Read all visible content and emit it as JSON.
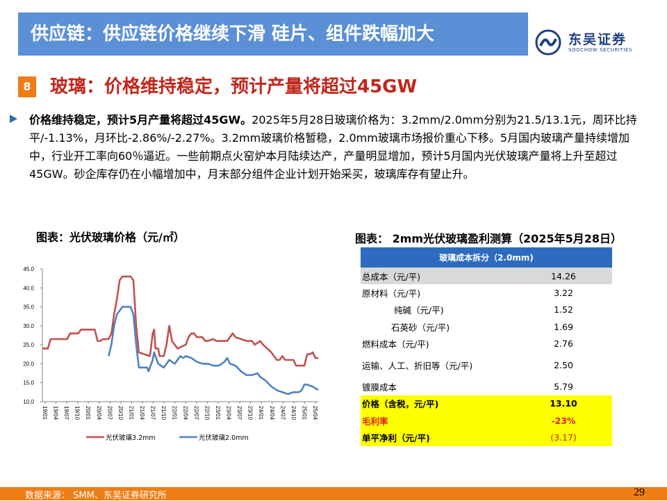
{
  "header": {
    "title": "供应链：供应链价格继续下滑 硅片、组件跌幅加大"
  },
  "logo": {
    "cn": "东吴证券",
    "en": "SOOCHOW SECURITIES",
    "mark_color": "#1f3f82"
  },
  "section": {
    "number": "8",
    "title": "玻璃：价格维持稳定，预计产量将超过45GW"
  },
  "paragraph": {
    "bold": "价格维持稳定，预计5月产量将超过45GW。",
    "text": "2025年5月28日玻璃价格为：3.2mm/2.0mm分别为21.5/13.1元，周环比持平/-1.13%，月环比-2.86%/-2.27%。3.2mm玻璃价格暂稳，2.0mm玻璃市场报价重心下移。5月国内玻璃产量持续增加中，行业开工率向60％逼近。一些前期点火窑炉本月陆续达产，产量明显增加，预计5月国内光伏玻璃产量将上升至超过45GW。砂企库存仍在小幅增加中，月末部分组件企业计划开始采买，玻璃库存有望止升。"
  },
  "captions": {
    "left": "图表：光伏玻璃价格（元/㎡）",
    "right": "图表：  2mm光伏玻璃盈利测算（2025年5月28日）"
  },
  "chart_data": {
    "type": "line",
    "title": "",
    "ylim": [
      10,
      45
    ],
    "yticks": [
      "10.0",
      "15.0",
      "20.0",
      "25.0",
      "30.0",
      "35.0",
      "40.0",
      "45.0"
    ],
    "xticks": [
      "19/01",
      "19/04",
      "19/07",
      "19/10",
      "20/01",
      "20/04",
      "20/07",
      "20/10",
      "21/01",
      "21/04",
      "21/07",
      "21/10",
      "22/01",
      "22/04",
      "22/07",
      "22/10",
      "23/01",
      "23/04",
      "23/07",
      "23/10",
      "24/01",
      "24/04",
      "24/07",
      "24/10",
      "25/01",
      "25/04"
    ],
    "x_start": "2019-01",
    "series": [
      {
        "name": "光伏玻璃3.2mm",
        "color": "#c0504d",
        "points": [
          [
            0,
            24
          ],
          [
            2,
            24
          ],
          [
            3,
            26.5
          ],
          [
            9,
            26.5
          ],
          [
            10,
            28
          ],
          [
            13,
            28
          ],
          [
            14,
            29
          ],
          [
            19,
            29
          ],
          [
            20,
            26
          ],
          [
            21,
            26
          ],
          [
            22,
            26.5
          ],
          [
            24,
            26.5
          ],
          [
            25,
            28
          ],
          [
            26,
            33
          ],
          [
            27,
            37
          ],
          [
            28,
            42
          ],
          [
            29,
            43
          ],
          [
            32,
            43
          ],
          [
            33,
            42
          ],
          [
            34,
            30
          ],
          [
            35,
            23
          ],
          [
            39,
            22
          ],
          [
            40,
            28
          ],
          [
            40.5,
            29
          ],
          [
            41,
            24
          ],
          [
            42,
            24
          ],
          [
            42.5,
            22
          ],
          [
            44,
            22
          ],
          [
            45,
            25
          ],
          [
            46,
            30
          ],
          [
            47,
            26
          ],
          [
            48,
            25
          ],
          [
            49,
            24
          ],
          [
            52,
            25
          ],
          [
            53,
            27
          ],
          [
            54,
            28
          ],
          [
            55,
            28
          ],
          [
            56,
            27
          ],
          [
            58,
            27
          ],
          [
            59,
            26
          ],
          [
            60,
            26
          ],
          [
            62,
            26.5
          ],
          [
            63,
            26
          ],
          [
            67,
            26
          ],
          [
            68,
            27
          ],
          [
            69,
            28
          ],
          [
            70,
            27
          ],
          [
            72,
            26.5
          ],
          [
            74,
            26
          ],
          [
            76,
            26
          ],
          [
            77,
            25
          ],
          [
            79,
            26
          ],
          [
            80,
            25
          ],
          [
            83,
            23
          ],
          [
            85,
            21
          ],
          [
            86,
            21
          ],
          [
            87,
            22
          ],
          [
            88,
            21
          ],
          [
            91,
            21
          ],
          [
            92,
            19.5
          ],
          [
            95,
            19.5
          ],
          [
            96,
            22.5
          ],
          [
            97,
            22.5
          ],
          [
            98,
            23
          ],
          [
            99,
            21.5
          ],
          [
            100,
            21.5
          ]
        ]
      },
      {
        "name": "光伏玻璃2.0mm",
        "color": "#4f81bd",
        "points": [
          [
            24,
            22
          ],
          [
            25,
            25
          ],
          [
            26,
            30
          ],
          [
            27,
            33
          ],
          [
            28,
            34
          ],
          [
            29,
            35
          ],
          [
            32,
            35
          ],
          [
            33,
            33
          ],
          [
            34,
            25
          ],
          [
            35,
            19
          ],
          [
            38,
            19
          ],
          [
            38.5,
            18
          ],
          [
            40,
            21
          ],
          [
            40.5,
            23
          ],
          [
            41,
            22
          ],
          [
            42,
            20
          ],
          [
            44,
            19
          ],
          [
            46,
            21
          ],
          [
            48,
            20
          ],
          [
            49,
            21
          ],
          [
            50,
            22
          ],
          [
            51,
            21.5
          ],
          [
            52,
            22
          ],
          [
            54,
            21.5
          ],
          [
            56,
            20.5
          ],
          [
            58,
            20
          ],
          [
            60,
            20
          ],
          [
            62,
            19.5
          ],
          [
            64,
            19.5
          ],
          [
            66,
            20.5
          ],
          [
            67,
            21.5
          ],
          [
            68,
            20
          ],
          [
            70,
            19.5
          ],
          [
            72,
            18
          ],
          [
            74,
            17
          ],
          [
            76,
            17
          ],
          [
            78,
            17.5
          ],
          [
            79,
            16.5
          ],
          [
            81,
            15.5
          ],
          [
            83,
            14
          ],
          [
            85,
            13
          ],
          [
            87,
            12.5
          ],
          [
            89,
            12
          ],
          [
            91,
            12.5
          ],
          [
            93,
            12.5
          ],
          [
            94,
            13
          ],
          [
            95,
            14.5
          ],
          [
            96,
            14.5
          ],
          [
            97,
            14.2
          ],
          [
            98,
            14
          ],
          [
            99,
            13.5
          ],
          [
            100,
            13.1
          ]
        ]
      }
    ],
    "legend_position": "bottom"
  },
  "cost_table": {
    "header": "玻璃成本拆分（2.0mm)",
    "rows": [
      {
        "label": "总成本（元/平)",
        "value": "14.26"
      },
      {
        "label": "原材料（元/平)",
        "value": "3.22"
      },
      {
        "label": "纯碱（元/平)",
        "value": "1.52"
      },
      {
        "label": "石英砂（元/平)",
        "value": "1.69"
      },
      {
        "label": "燃料成本（元/平)",
        "value": "2.76"
      },
      {
        "label": "运输、人工、折旧等（元/平)",
        "value": "2.50"
      },
      {
        "label": "镀膜成本",
        "value": "5.79"
      },
      {
        "label": "价格（含税，元/平)",
        "value": "13.10"
      },
      {
        "label": "毛利率",
        "value": "-23%"
      },
      {
        "label": "单平净利（元/平)",
        "value": "(3.17)"
      }
    ]
  },
  "footer": {
    "source": "数据来源：  SMM、东吴证券研究所",
    "page": "29"
  }
}
